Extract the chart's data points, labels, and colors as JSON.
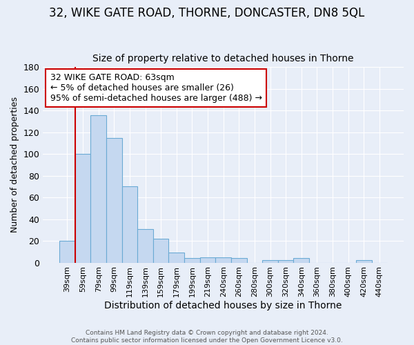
{
  "title1": "32, WIKE GATE ROAD, THORNE, DONCASTER, DN8 5QL",
  "title2": "Size of property relative to detached houses in Thorne",
  "xlabel": "Distribution of detached houses by size in Thorne",
  "ylabel": "Number of detached properties",
  "bar_color": "#c5d8f0",
  "bar_edge_color": "#6aaad4",
  "categories": [
    "39sqm",
    "59sqm",
    "79sqm",
    "99sqm",
    "119sqm",
    "139sqm",
    "159sqm",
    "179sqm",
    "199sqm",
    "219sqm",
    "240sqm",
    "260sqm",
    "280sqm",
    "300sqm",
    "320sqm",
    "340sqm",
    "360sqm",
    "380sqm",
    "400sqm",
    "420sqm",
    "440sqm"
  ],
  "values": [
    20,
    100,
    136,
    115,
    70,
    31,
    22,
    9,
    4,
    5,
    5,
    4,
    0,
    2,
    2,
    4,
    0,
    0,
    0,
    2,
    0
  ],
  "ylim": [
    0,
    180
  ],
  "yticks": [
    0,
    20,
    40,
    60,
    80,
    100,
    120,
    140,
    160,
    180
  ],
  "marker_color": "#cc0000",
  "annotation_text": "32 WIKE GATE ROAD: 63sqm\n← 5% of detached houses are smaller (26)\n95% of semi-detached houses are larger (488) →",
  "annotation_box_color": "#ffffff",
  "annotation_box_edge_color": "#cc0000",
  "footer1": "Contains HM Land Registry data © Crown copyright and database right 2024.",
  "footer2": "Contains public sector information licensed under the Open Government Licence v3.0.",
  "background_color": "#e8eef8",
  "grid_color": "#ffffff",
  "title1_fontsize": 12,
  "title2_fontsize": 10,
  "xlabel_fontsize": 10,
  "ylabel_fontsize": 9,
  "annot_fontsize": 9
}
